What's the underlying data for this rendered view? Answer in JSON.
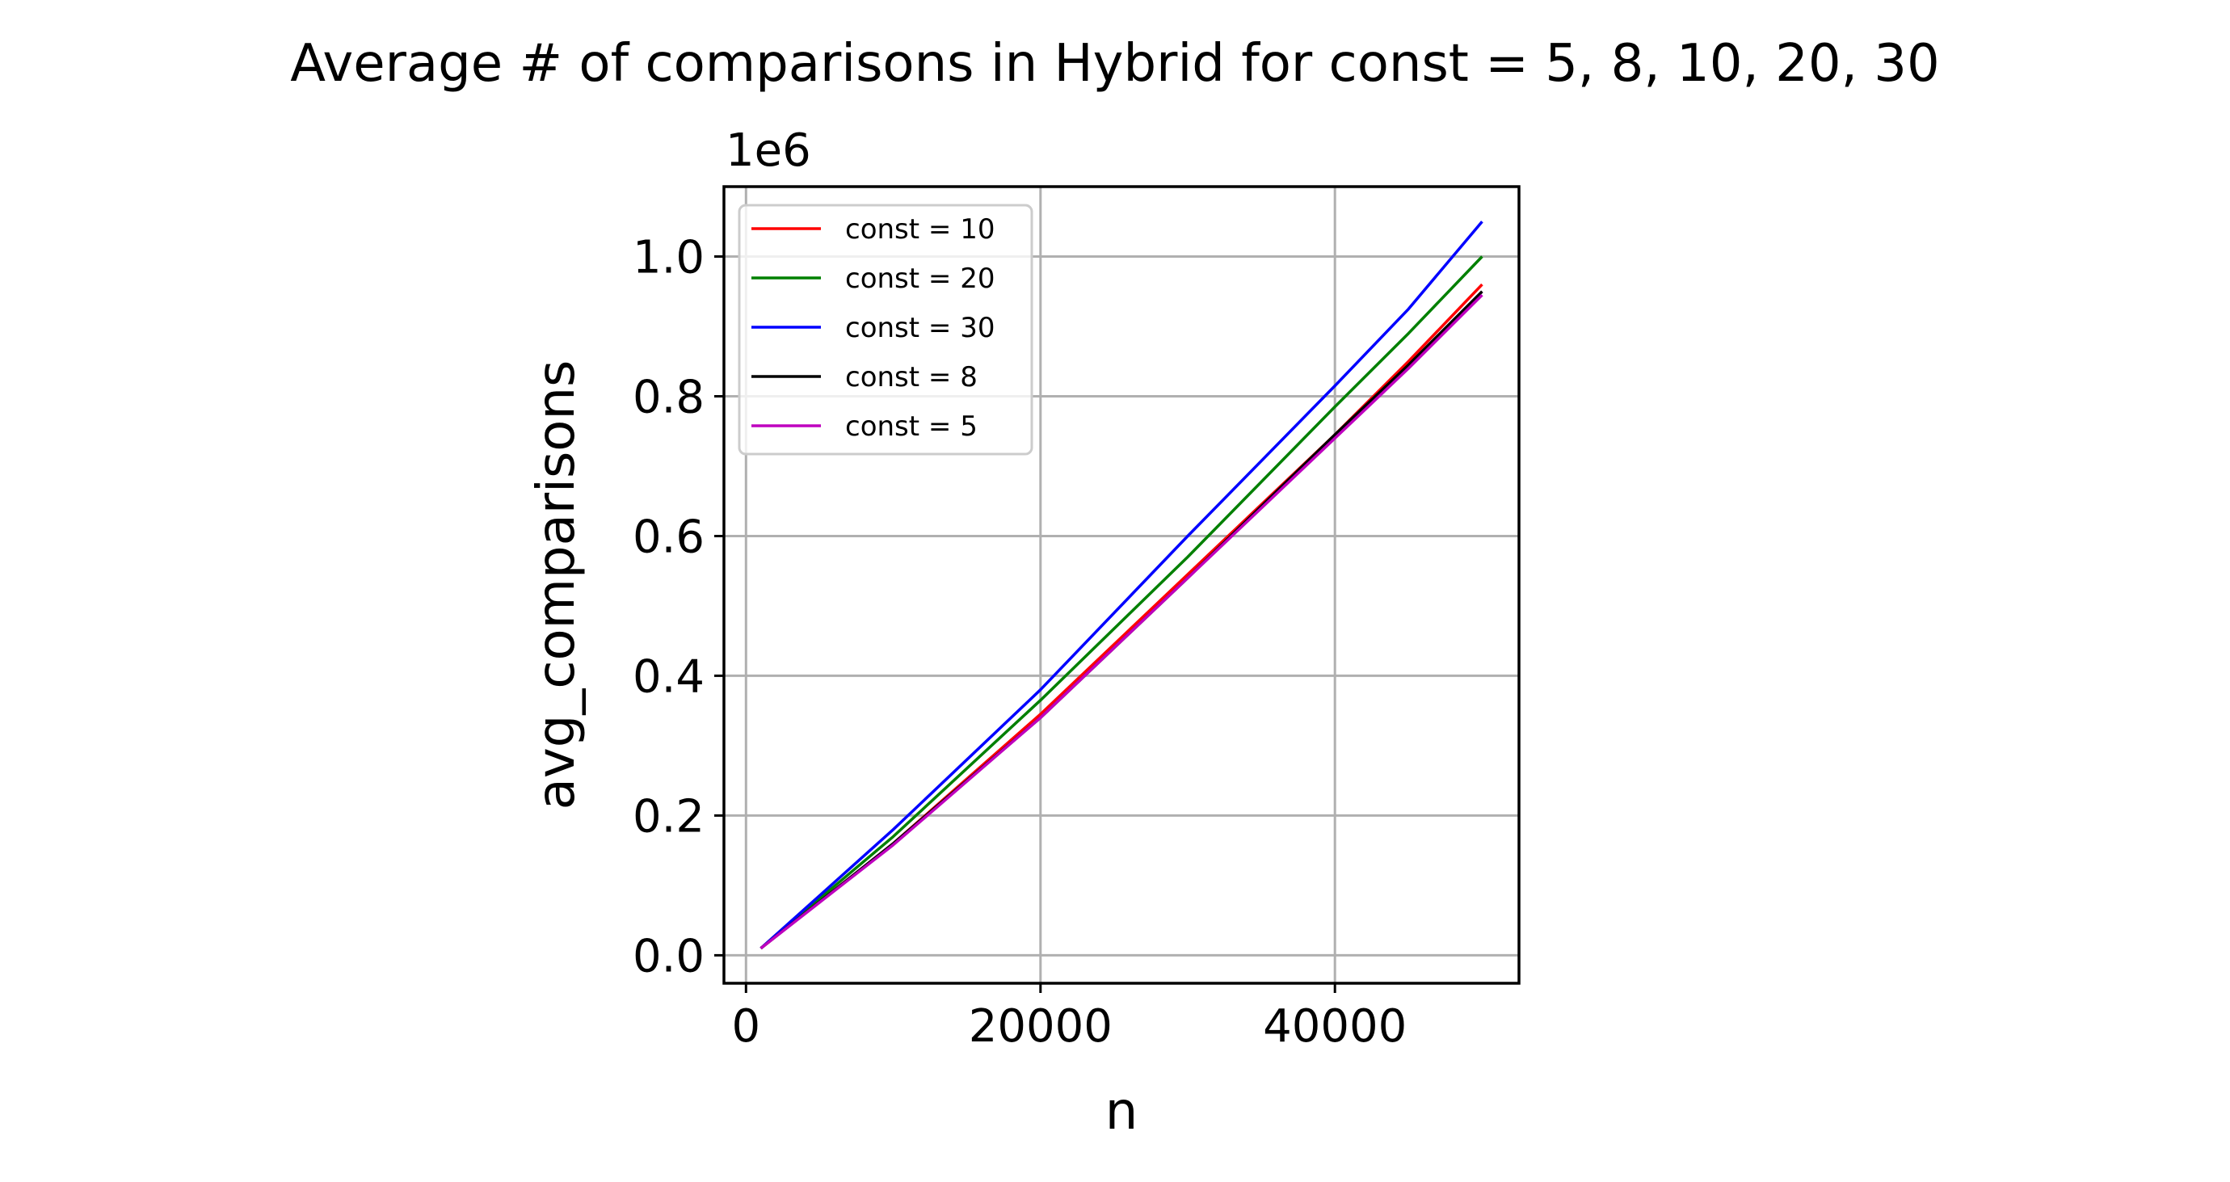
{
  "chart_data": {
    "type": "line",
    "title": "Average # of comparisons in Hybrid for const = 5, 8, 10, 20, 30",
    "xlabel": "n",
    "ylabel": "avg_comparisons",
    "y_offset_label": "1e6",
    "y_scale": 1000000,
    "xlim": [
      -1500,
      52500
    ],
    "ylim": [
      -40000,
      1100000
    ],
    "x_ticks": [
      0,
      20000,
      40000
    ],
    "x_tick_labels": [
      "0",
      "20000",
      "40000"
    ],
    "y_ticks": [
      0,
      200000,
      400000,
      600000,
      800000,
      1000000
    ],
    "y_tick_labels": [
      "0.0",
      "0.2",
      "0.4",
      "0.6",
      "0.8",
      "1.0"
    ],
    "grid": true,
    "legend_position": "top-left",
    "x": [
      1000,
      10000,
      20000,
      30000,
      40000,
      45000,
      50000
    ],
    "series": [
      {
        "name": "const = 10",
        "color": "#ff0000",
        "values": [
          10000,
          160000,
          345000,
          545000,
          745000,
          850000,
          960000
        ]
      },
      {
        "name": "const = 20",
        "color": "#008000",
        "values": [
          10000,
          170000,
          365000,
          570000,
          785000,
          890000,
          1000000
        ]
      },
      {
        "name": "const = 30",
        "color": "#0000ff",
        "values": [
          10000,
          180000,
          380000,
          600000,
          815000,
          925000,
          1050000
        ]
      },
      {
        "name": "const = 8",
        "color": "#000000",
        "values": [
          10000,
          160000,
          340000,
          540000,
          745000,
          845000,
          950000
        ]
      },
      {
        "name": "const = 5",
        "color": "#bf00bf",
        "values": [
          10000,
          158000,
          340000,
          540000,
          740000,
          840000,
          945000
        ]
      }
    ]
  }
}
